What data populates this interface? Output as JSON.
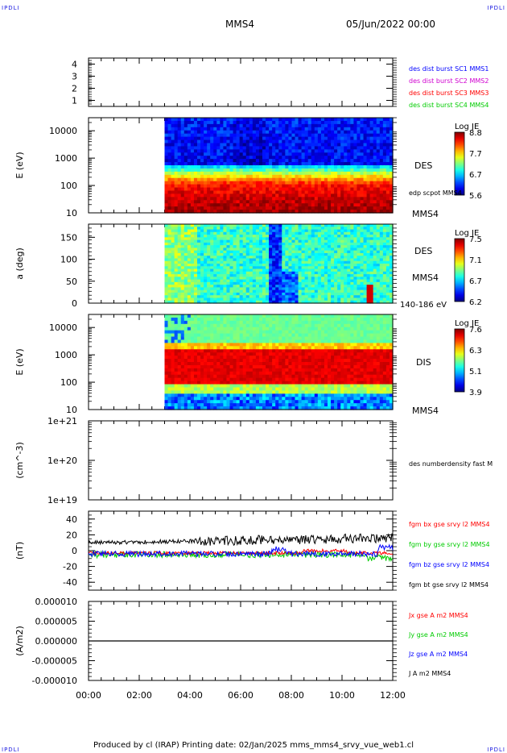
{
  "corner_labels": {
    "top_left": "IPDLI",
    "top_right": "IPDLI",
    "bottom_left": "IPDLI",
    "bottom_right": "IPDLI"
  },
  "header": {
    "title": "MMS4",
    "date": "05/Jun/2022 00:00"
  },
  "footer": {
    "text": "Produced by cl (IRAP)   Printing date: 02/Jan/2025   mms_mms4_srvy_vue_web1.cl"
  },
  "colors": {
    "c1": "#0000ff",
    "c2": "#d000d0",
    "c3": "#ff0000",
    "c4": "#00cc00",
    "black": "#000000"
  },
  "chart_data": [
    {
      "type": "line",
      "ylim": [
        0.5,
        4.5
      ],
      "y_ticks": [
        "1",
        "2",
        "3",
        "4"
      ],
      "legend": [
        {
          "label": "des dist burst SC1 MMS1",
          "color": "#0000ff"
        },
        {
          "label": "des dist burst SC2 MMS2",
          "color": "#d000d0"
        },
        {
          "label": "des dist burst SC3 MMS3",
          "color": "#ff0000"
        },
        {
          "label": "des dist burst SC4 MMS4",
          "color": "#00cc00"
        }
      ]
    },
    {
      "type": "heatmap",
      "ylabel": "E (eV)",
      "y_scale": "log",
      "ylim": [
        10,
        30000
      ],
      "y_ticks": [
        "10000",
        "1000",
        "100",
        "10"
      ],
      "data_start": "03:00",
      "label": "DES",
      "annotation": "edp scpot MMS4",
      "bottom_label": "MMS4",
      "colorbar": {
        "title": "Log JE",
        "ticks": [
          "8.8",
          "7.7",
          "6.7",
          "5.6"
        ],
        "range": [
          5.6,
          8.8
        ]
      }
    },
    {
      "type": "heatmap",
      "ylabel": "a (deg)",
      "ylim": [
        0,
        180
      ],
      "y_ticks": [
        "150",
        "100",
        "50",
        "0"
      ],
      "data_start": "03:00",
      "label": "DES",
      "sub_label": "MMS4",
      "bottom_label": "140-186 eV",
      "colorbar": {
        "title": "Log JE",
        "ticks": [
          "7.5",
          "7.1",
          "6.7",
          "6.2"
        ],
        "range": [
          6.2,
          7.5
        ]
      }
    },
    {
      "type": "heatmap",
      "ylabel": "E (eV)",
      "y_scale": "log",
      "ylim": [
        10,
        30000
      ],
      "y_ticks": [
        "10000",
        "1000",
        "100",
        "10"
      ],
      "data_start": "03:00",
      "label": "DIS",
      "bottom_label": "MMS4",
      "colorbar": {
        "title": "Log JE",
        "ticks": [
          "7.6",
          "6.3",
          "5.1",
          "3.9"
        ],
        "range": [
          3.9,
          7.6
        ]
      }
    },
    {
      "type": "line",
      "ylabel": "(cm^-3)",
      "y_scale": "log",
      "ylim": [
        1e+19,
        1e+21
      ],
      "y_ticks": [
        "1e+21",
        "1e+20",
        "1e+19"
      ],
      "legend": [
        {
          "label": "des numberdensity fast M",
          "color": "#000000"
        }
      ]
    },
    {
      "type": "line",
      "ylabel": "(nT)",
      "ylim": [
        -50,
        50
      ],
      "y_ticks": [
        "40",
        "20",
        "0",
        "-20",
        "-40"
      ],
      "series": [
        {
          "name": "fgm bt gse srvy l2 MMS4",
          "color": "#000000",
          "mean": 10
        },
        {
          "name": "fgm by gse srvy l2 MMS4",
          "color": "#00cc00",
          "mean": -5
        },
        {
          "name": "fgm bx gse srvy l2 MMS4",
          "color": "#ff0000",
          "mean": -3
        },
        {
          "name": "fgm bz gse srvy l2 MMS4",
          "color": "#0000ff",
          "mean": -4
        }
      ],
      "legend": [
        {
          "label": "fgm bx gse srvy l2 MMS4",
          "color": "#ff0000"
        },
        {
          "label": "fgm by gse srvy l2 MMS4",
          "color": "#00cc00"
        },
        {
          "label": "fgm bz gse srvy l2 MMS4",
          "color": "#0000ff"
        },
        {
          "label": "fgm bt gse srvy l2 MMS4",
          "color": "#000000"
        }
      ]
    },
    {
      "type": "line",
      "ylabel": "(A/m2)",
      "ylim": [
        -1e-05,
        1e-05
      ],
      "y_ticks": [
        "0.000010",
        "0.000005",
        "0.000000",
        "-0.000005",
        "-0.000010"
      ],
      "series": [
        {
          "name": "J A m2 MMS4",
          "color": "#000000",
          "mean": 0
        }
      ],
      "legend": [
        {
          "label": "Jx gse A m2 MMS4",
          "color": "#ff0000"
        },
        {
          "label": "Jy gse A m2 MMS4",
          "color": "#00cc00"
        },
        {
          "label": "Jz gse A m2 MMS4",
          "color": "#0000ff"
        },
        {
          "label": "J A m2 MMS4",
          "color": "#000000"
        }
      ],
      "x_ticks": [
        "00:00",
        "02:00",
        "04:00",
        "06:00",
        "08:00",
        "10:00",
        "12:00"
      ],
      "xlim": [
        "00:00",
        "12:00"
      ]
    }
  ]
}
